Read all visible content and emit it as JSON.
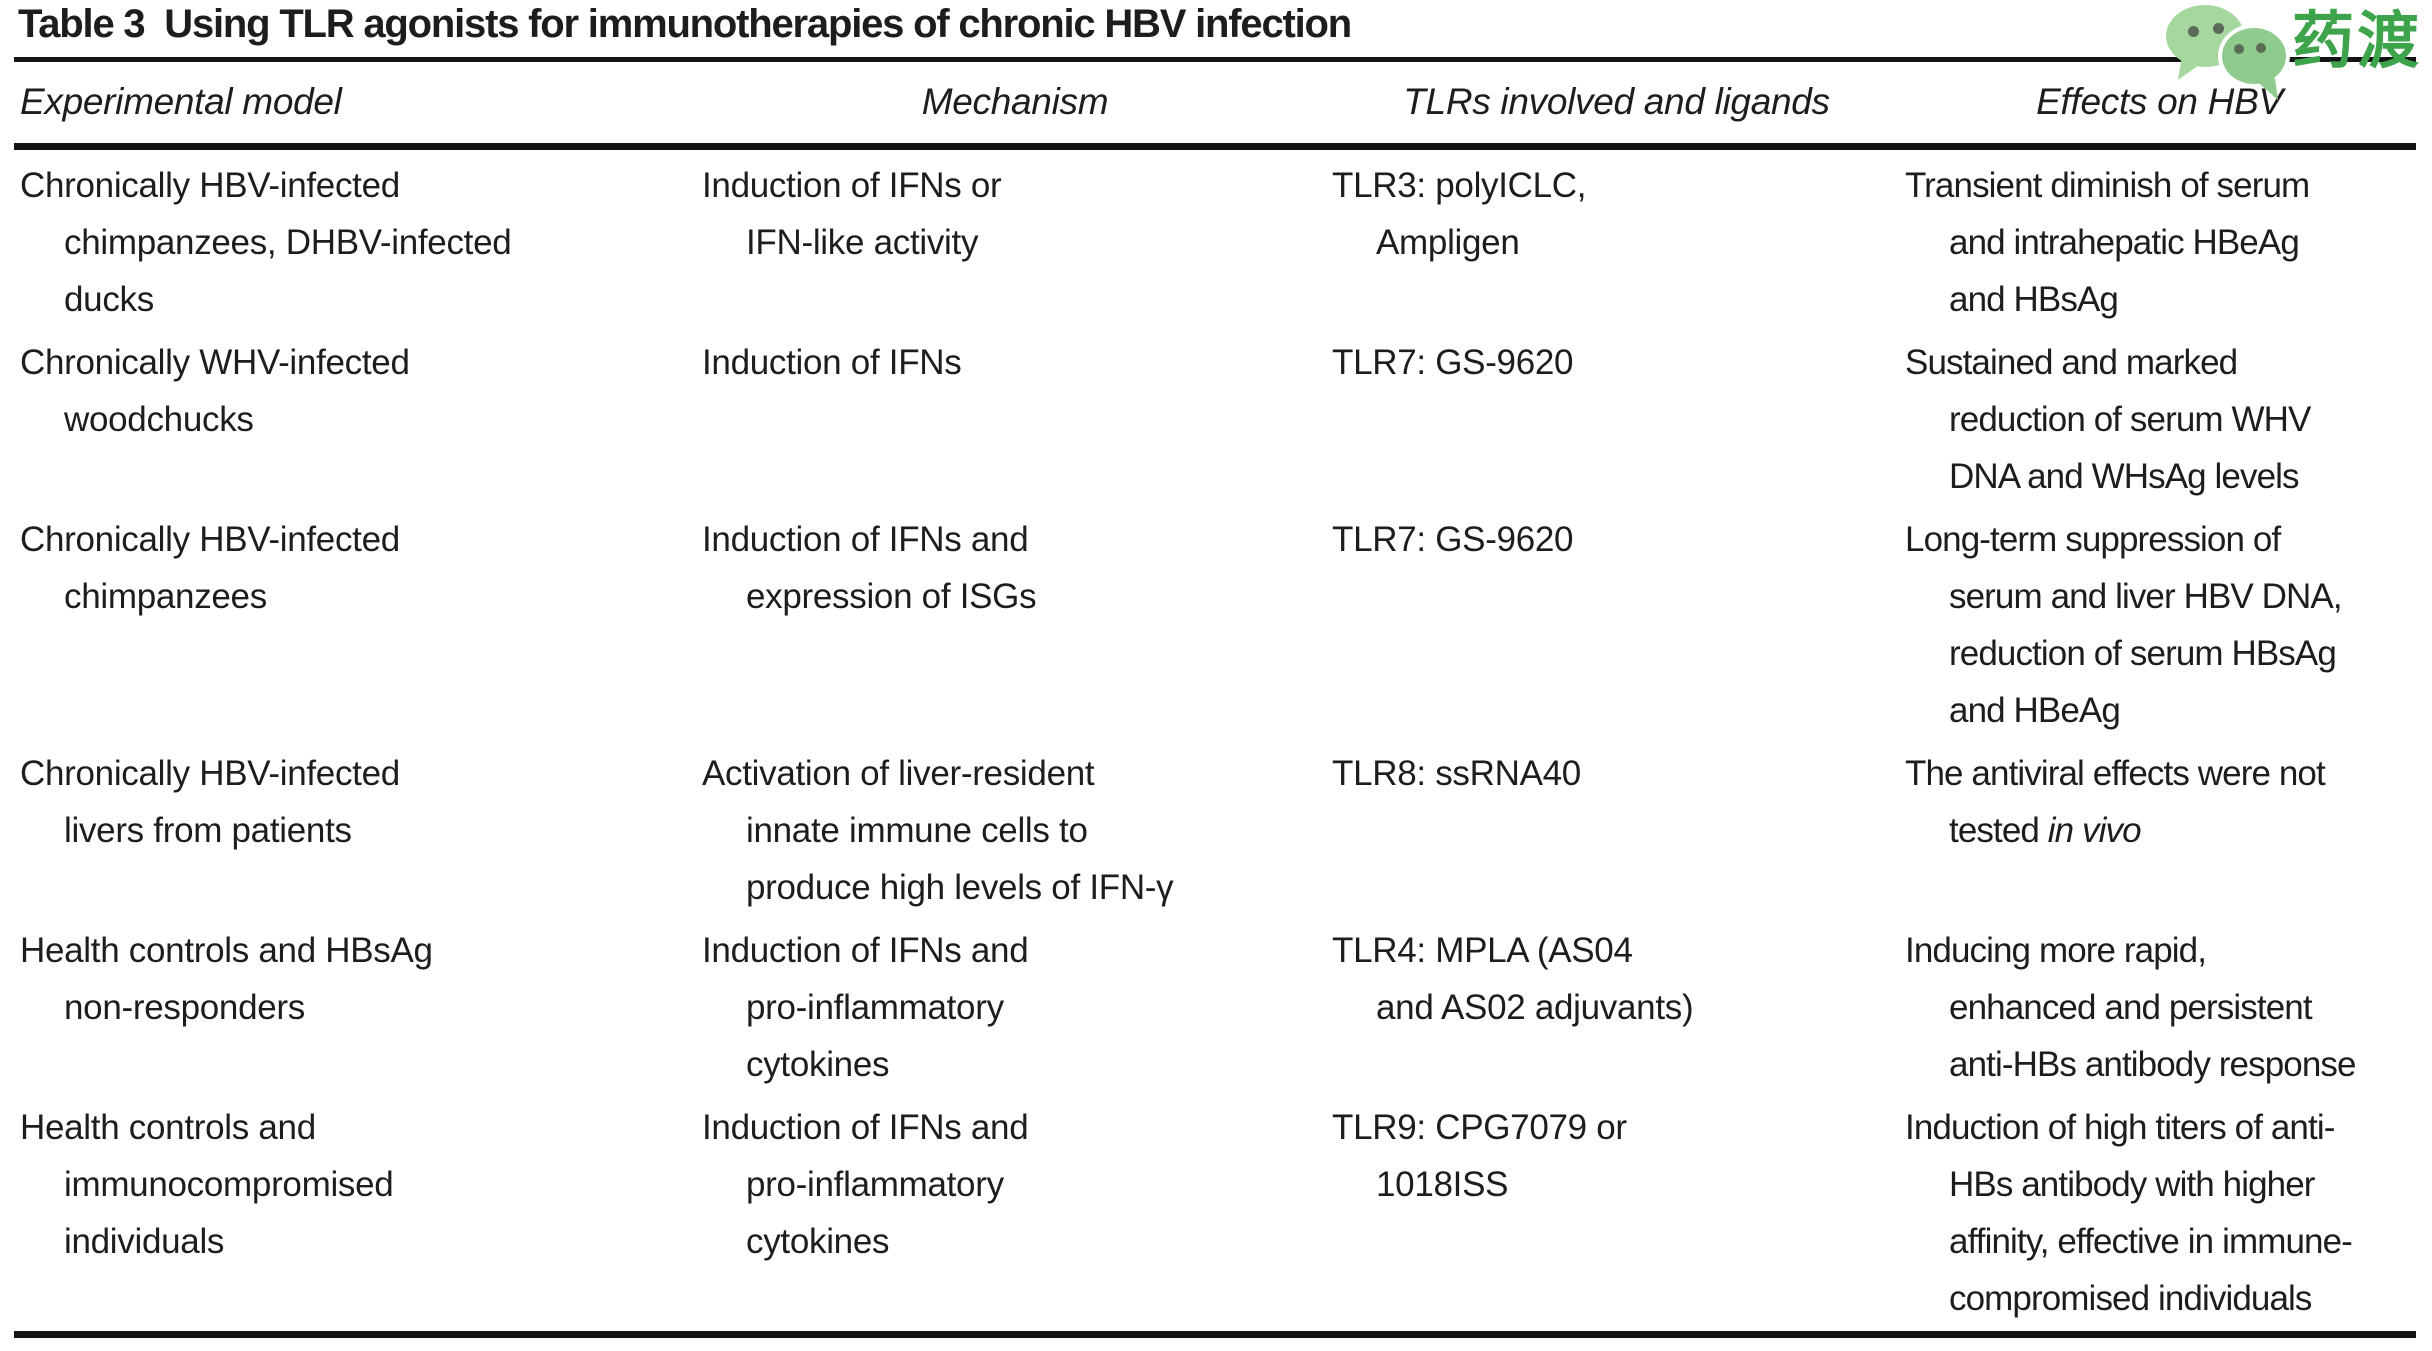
{
  "title": "Table 3  Using TLR agonists for immunotherapies of chronic HBV infection",
  "logo": {
    "text": "药渡",
    "icon": "wechat-chat-bubbles",
    "colors": {
      "bubble_light": "#a6d79f",
      "bubble_dark": "#8ecb8d",
      "eyes": "#5a6b57",
      "brand_green": "#3da44c"
    }
  },
  "colors": {
    "text": "#1d1d1f",
    "rule": "#141414",
    "background": "#ffffff"
  },
  "table": {
    "headers": [
      "Experimental model",
      "Mechanism",
      "TLRs involved and ligands",
      "Effects on HBV"
    ],
    "rows": [
      {
        "experimental_model": "Chronically HBV-infected\nchimpanzees, DHBV-infected\nducks",
        "mechanism": "Induction of IFNs or\nIFN-like activity",
        "tlrs_and_ligands": "TLR3: polyICLC,\nAmpligen",
        "effects_on_hbv": "Transient diminish of serum\nand intrahepatic HBeAg\nand HBsAg"
      },
      {
        "experimental_model": "Chronically WHV-infected\nwoodchucks",
        "mechanism": "Induction of IFNs",
        "tlrs_and_ligands": "TLR7: GS-9620",
        "effects_on_hbv": "Sustained and marked\nreduction of serum WHV\nDNA and WHsAg levels"
      },
      {
        "experimental_model": "Chronically HBV-infected\nchimpanzees",
        "mechanism": "Induction of IFNs and\nexpression of ISGs",
        "tlrs_and_ligands": "TLR7: GS-9620",
        "effects_on_hbv": "Long-term suppression of\nserum and liver HBV DNA,\nreduction of serum HBsAg\nand HBeAg"
      },
      {
        "experimental_model": "Chronically HBV-infected\nlivers from patients",
        "mechanism": "Activation of liver-resident\ninnate immune cells to\nproduce high levels of IFN-γ",
        "tlrs_and_ligands": "TLR8: ssRNA40",
        "effects_on_hbv": "The antiviral effects were not\ntested *in vivo*"
      },
      {
        "experimental_model": "Health controls and HBsAg\nnon-responders",
        "mechanism": "Induction of IFNs and\npro-inflammatory\ncytokines",
        "tlrs_and_ligands": "TLR4: MPLA (AS04\nand AS02 adjuvants)",
        "effects_on_hbv": "Inducing more rapid,\nenhanced and persistent\nanti-HBs antibody response"
      },
      {
        "experimental_model": "Health controls and\nimmunocompromised\nindividuals",
        "mechanism": "Induction of IFNs and\npro-inflammatory\ncytokines",
        "tlrs_and_ligands": "TLR9: CPG7079 or\n1018ISS",
        "effects_on_hbv": "Induction of high titers of anti-\nHBs antibody with higher\naffinity, effective in immune-\ncompromised individuals"
      }
    ]
  }
}
